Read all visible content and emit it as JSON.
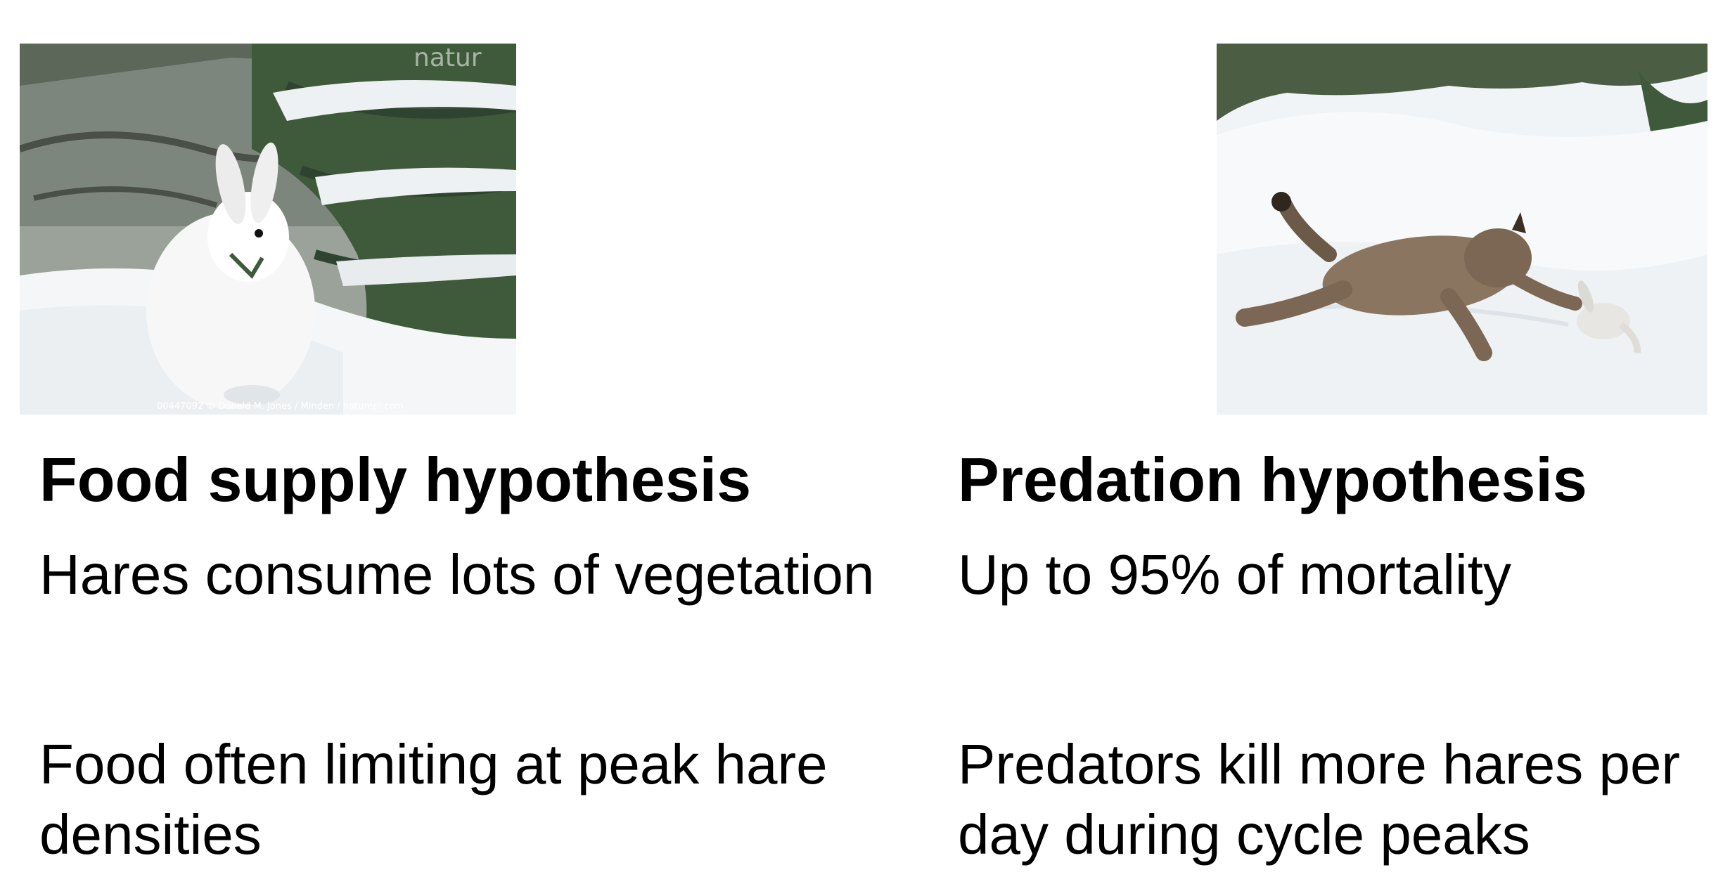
{
  "left": {
    "photo_alt": "snowshoe-hare-photo",
    "photo_credit": "00447092 © Donald M. Jones / Minden / naturepl.com",
    "photo_watermark": "natur",
    "heading": "Food supply hypothesis",
    "points": [
      "Hares consume lots of vegetation",
      "Food often limiting at peak hare densities"
    ]
  },
  "right": {
    "photo_alt": "lynx-chasing-hare-photo",
    "heading": "Predation hypothesis",
    "points": [
      "Up to 95% of mortality",
      "Predators kill more hares per day during cycle peaks"
    ]
  },
  "colors": {
    "text": "#000000",
    "background": "#ffffff",
    "snow": "#f4f6f8",
    "conifer": "#3f5a3a",
    "lynx": "#8a7560"
  }
}
